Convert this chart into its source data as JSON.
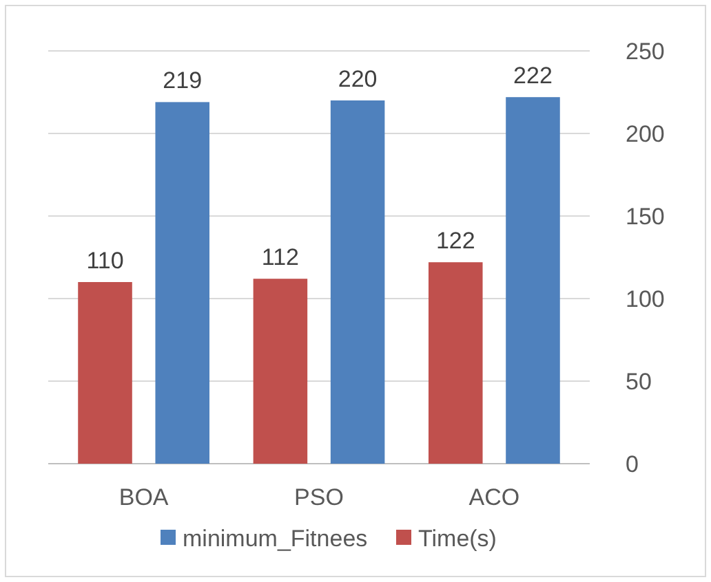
{
  "chart_data": {
    "type": "bar",
    "categories": [
      "BOA",
      "PSO",
      "ACO"
    ],
    "series": [
      {
        "name": "Time(s)",
        "color": "#c0504d",
        "values": [
          110,
          112,
          122
        ]
      },
      {
        "name": "minimum_Fitnees",
        "color": "#4f81bd",
        "values": [
          219,
          220,
          222
        ]
      }
    ],
    "ylim": [
      0,
      250
    ],
    "yticks": [
      0,
      50,
      100,
      150,
      200,
      250
    ],
    "grid": "y",
    "legend": "bottom",
    "data_labels": true
  }
}
